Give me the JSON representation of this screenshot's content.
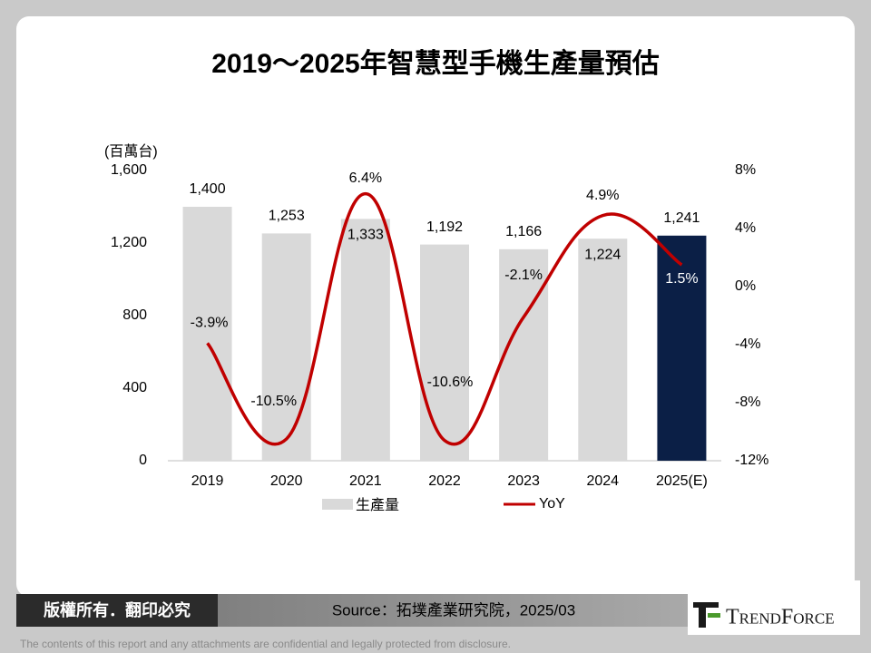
{
  "chart_data": {
    "type": "bar",
    "title": "2019～2025年智慧型手機生產量預估",
    "y_label": "(百萬台)",
    "categories": [
      "2019",
      "2020",
      "2021",
      "2022",
      "2023",
      "2024",
      "2025(E)"
    ],
    "series": [
      {
        "name": "生產量",
        "type": "bar",
        "colors": [
          "#d9d9d9",
          "#d9d9d9",
          "#d9d9d9",
          "#d9d9d9",
          "#d9d9d9",
          "#d9d9d9",
          "#0b1f46"
        ],
        "values": [
          1400,
          1253,
          1333,
          1192,
          1166,
          1224,
          1241
        ],
        "value_labels": [
          "1,400",
          "1,253",
          "1,333",
          "1,192",
          "1,166",
          "1,224",
          "1,241"
        ]
      },
      {
        "name": "YoY",
        "type": "line",
        "axis": "y2",
        "color": "#c00000",
        "values": [
          -3.9,
          -10.5,
          6.4,
          -10.6,
          -2.1,
          4.9,
          1.5
        ],
        "value_labels": [
          "-3.9%",
          "-10.5%",
          "6.4%",
          "-10.6%",
          "-2.1%",
          "4.9%",
          "1.5%"
        ]
      }
    ],
    "ylim": [
      0,
      1600
    ],
    "yticks": [
      0,
      400,
      800,
      {
        "value": 1200,
        "label": "1,200"
      },
      {
        "value": 1600,
        "label": "1,600"
      }
    ],
    "y2lim": [
      -12,
      8
    ],
    "y2ticks": [
      {
        "value": -12,
        "label": "-12%"
      },
      {
        "value": -8,
        "label": "-8%"
      },
      {
        "value": -4,
        "label": "-4%"
      },
      {
        "value": 0,
        "label": "0%"
      },
      {
        "value": 4,
        "label": "4%"
      },
      {
        "value": 8,
        "label": "8%"
      }
    ],
    "legend": "bottom"
  },
  "footer": {
    "copyright": "版權所有．翻印必究",
    "source": "Source：拓墣產業研究院，2025/03",
    "brand": "TrendForce",
    "disclaimer": "The contents of this report and any attachments are confidential and legally protected from disclosure."
  }
}
